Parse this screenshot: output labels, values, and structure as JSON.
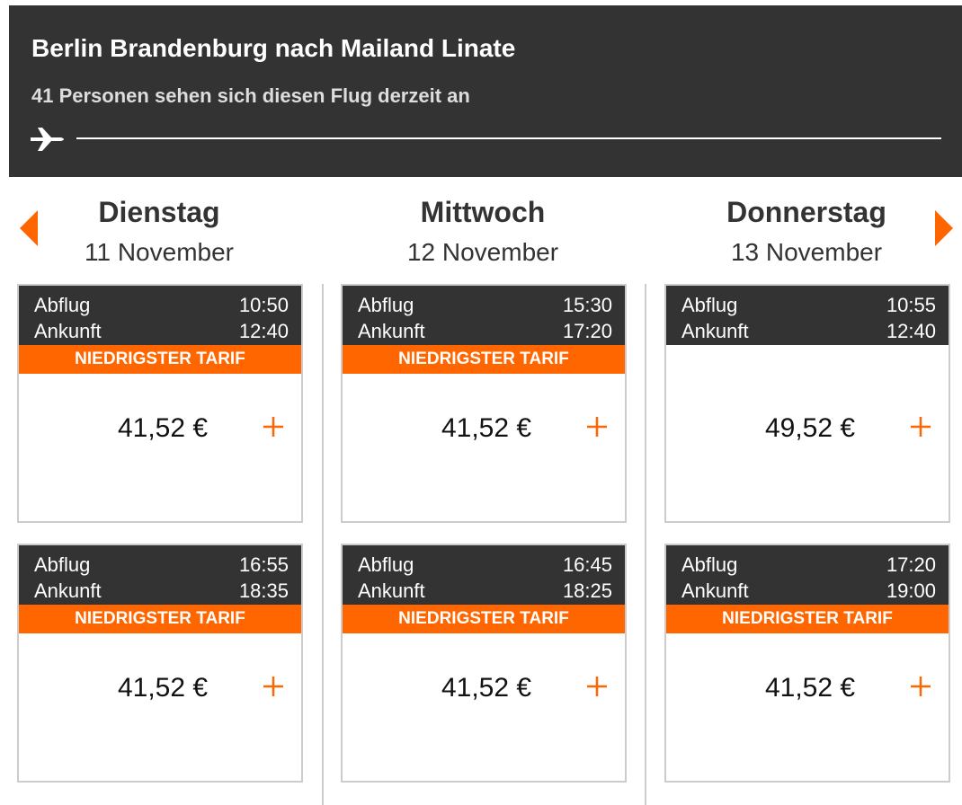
{
  "header": {
    "title": "Berlin Brandenburg nach Mailand Linate",
    "subtitle": "41 Personen sehen sich diesen Flug derzeit an"
  },
  "labels": {
    "departure": "Abflug",
    "arrival": "Ankunft"
  },
  "days": [
    {
      "name": "Dienstag",
      "date": "11 November",
      "flights": [
        {
          "departure": "10:50",
          "arrival": "12:40",
          "badge": "NIEDRIGSTER TARIF",
          "price": "41,52 €"
        },
        {
          "departure": "16:55",
          "arrival": "18:35",
          "badge": "NIEDRIGSTER TARIF",
          "price": "41,52 €"
        }
      ]
    },
    {
      "name": "Mittwoch",
      "date": "12 November",
      "flights": [
        {
          "departure": "15:30",
          "arrival": "17:20",
          "badge": "NIEDRIGSTER TARIF",
          "price": "41,52 €"
        },
        {
          "departure": "16:45",
          "arrival": "18:25",
          "badge": "NIEDRIGSTER TARIF",
          "price": "41,52 €"
        }
      ]
    },
    {
      "name": "Donnerstag",
      "date": "13 November",
      "flights": [
        {
          "departure": "10:55",
          "arrival": "12:40",
          "price": "49,52 €"
        },
        {
          "departure": "17:20",
          "arrival": "19:00",
          "badge": "NIEDRIGSTER TARIF",
          "price": "41,52 €"
        }
      ]
    }
  ]
}
